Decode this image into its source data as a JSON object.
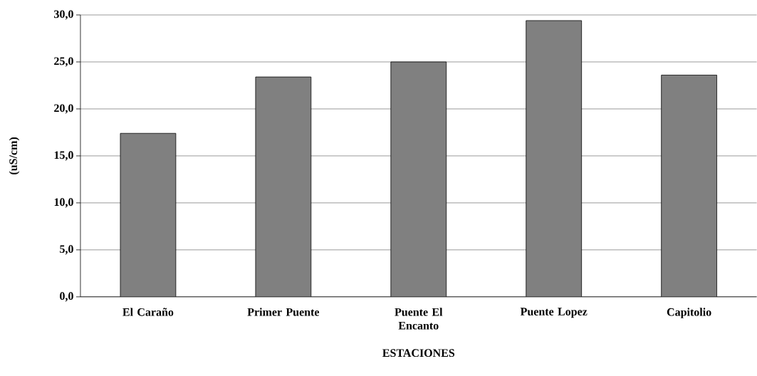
{
  "chart_data": {
    "type": "bar",
    "xlabel": "ESTACIONES",
    "ylabel": "(uS/cm)",
    "categories": [
      "El Caraño",
      "Primer Puente",
      "Puente El Encanto",
      "Puente Lopez",
      "Capitolio"
    ],
    "values": [
      17.4,
      23.4,
      25.0,
      29.4,
      23.6
    ],
    "color": "#808080",
    "ylim": [
      0,
      30
    ],
    "yticks": [
      {
        "value": 0,
        "label": "0,0"
      },
      {
        "value": 5,
        "label": "5,0"
      },
      {
        "value": 10,
        "label": "10,0"
      },
      {
        "value": 15,
        "label": "15,0"
      },
      {
        "value": 20,
        "label": "20,0"
      },
      {
        "value": 25,
        "label": "25,0"
      },
      {
        "value": 30,
        "label": "30,0"
      }
    ],
    "grid": "y"
  }
}
